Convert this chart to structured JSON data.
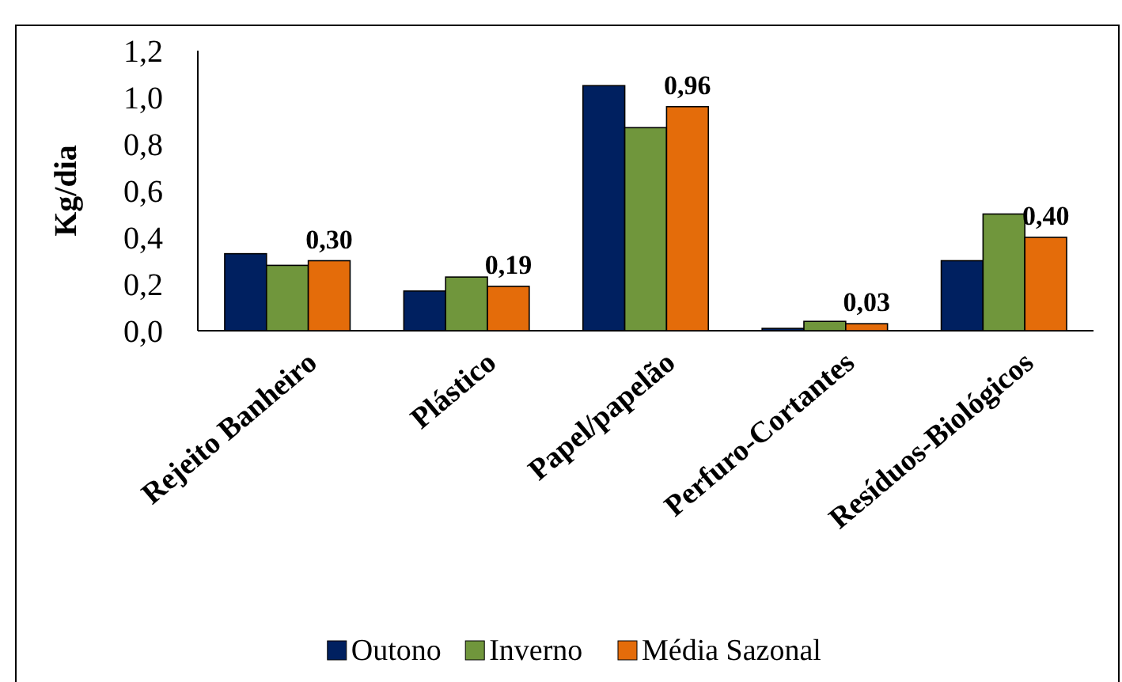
{
  "chart_data": {
    "type": "bar",
    "ylabel": "Kg/dia",
    "categories": [
      "Rejeito Banheiro",
      "Plástico",
      "Papel/papelão",
      "Perfuro-Cortantes",
      "Resíduos-Biológicos"
    ],
    "series": [
      {
        "name": "Outono",
        "color": "#002060",
        "values": [
          0.33,
          0.17,
          1.05,
          0.01,
          0.3
        ]
      },
      {
        "name": "Inverno",
        "color": "#70963c",
        "values": [
          0.28,
          0.23,
          0.87,
          0.04,
          0.5
        ]
      },
      {
        "name": "Média Sazonal",
        "color": "#e46c0a",
        "values": [
          0.3,
          0.19,
          0.96,
          0.03,
          0.4
        ],
        "value_labels": [
          "0,30",
          "0,19",
          "0,96",
          "0,03",
          "0,40"
        ]
      }
    ],
    "ylim": [
      0,
      1.2
    ],
    "yticks": [
      {
        "value": 0,
        "label": "0,0"
      },
      {
        "value": 0.2,
        "label": "0,2"
      },
      {
        "value": 0.4,
        "label": "0,4"
      },
      {
        "value": 0.6,
        "label": "0,6"
      },
      {
        "value": 0.8,
        "label": "0,8"
      },
      {
        "value": 1,
        "label": "1,0"
      },
      {
        "value": 1.2,
        "label": "1,2"
      }
    ],
    "legend": "bottom",
    "grid": false
  }
}
